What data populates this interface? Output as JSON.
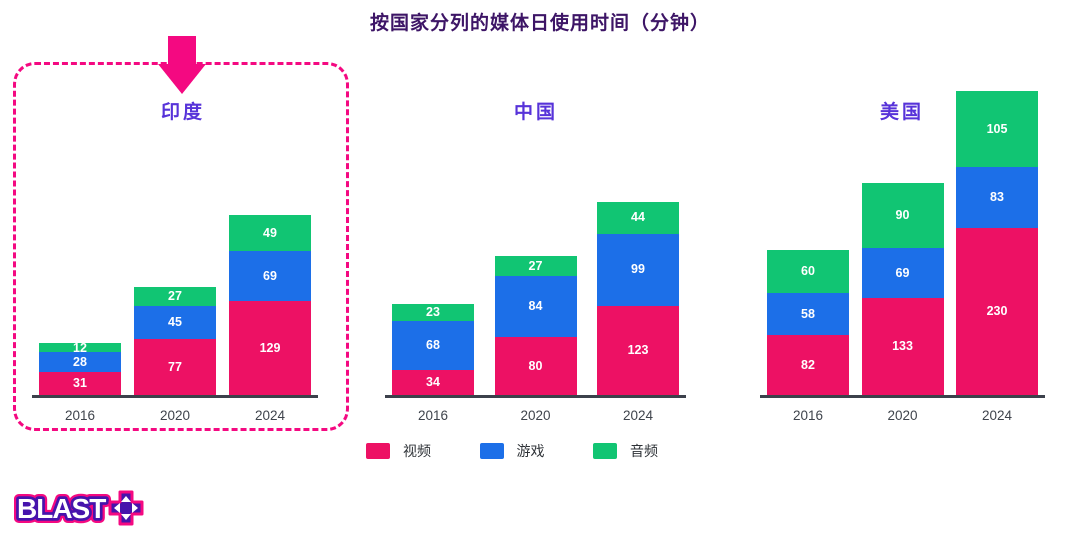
{
  "colors": {
    "accent_pink": "#F40981",
    "series": [
      "#ED1164",
      "#1C6FE8",
      "#11C573"
    ],
    "title_purple": "#3D1566",
    "country_purple": "#5733D9",
    "axis": "#3C414B"
  },
  "logo": {
    "text": "BLAST",
    "icon": "dpad-icon"
  },
  "chart_data": {
    "type": "bar",
    "stacked": true,
    "title": "按国家分列的媒体日使用时间（分钟）",
    "categories": [
      "2016",
      "2020",
      "2024"
    ],
    "unit": "分钟",
    "legend_position": "bottom",
    "grid": false,
    "groups": [
      {
        "country": "印度",
        "highlighted": true,
        "series": [
          {
            "name": "视频",
            "values": [
              31,
              77,
              129
            ]
          },
          {
            "name": "游戏",
            "values": [
              28,
              45,
              69
            ]
          },
          {
            "name": "音频",
            "values": [
              12,
              27,
              49
            ]
          }
        ]
      },
      {
        "country": "中国",
        "highlighted": false,
        "series": [
          {
            "name": "视频",
            "values": [
              34,
              80,
              123
            ]
          },
          {
            "name": "游戏",
            "values": [
              68,
              84,
              99
            ]
          },
          {
            "name": "音频",
            "values": [
              23,
              27,
              44
            ]
          }
        ]
      },
      {
        "country": "美国",
        "highlighted": false,
        "series": [
          {
            "name": "视频",
            "values": [
              82,
              133,
              230
            ]
          },
          {
            "name": "游戏",
            "values": [
              58,
              69,
              83
            ]
          },
          {
            "name": "音频",
            "values": [
              60,
              90,
              105
            ]
          }
        ]
      }
    ]
  }
}
